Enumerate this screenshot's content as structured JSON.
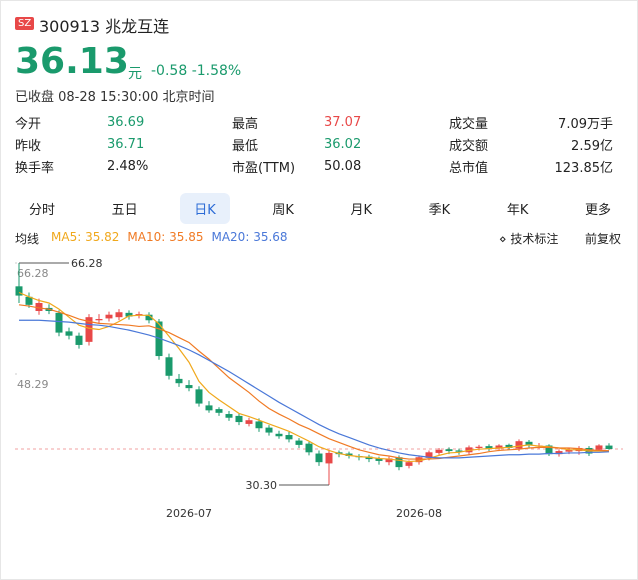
{
  "header": {
    "exchange": "SZ",
    "code": "300913",
    "name": "兆龙互连",
    "price": "36.13",
    "currency": "元",
    "change": "-0.58",
    "change_pct": "-1.58%",
    "status": "已收盘 08-28 15:30:00 北京时间"
  },
  "stats": [
    [
      {
        "label": "今开",
        "value": "36.69"
      },
      {
        "label": "最高",
        "value": "37.07"
      },
      {
        "label": "成交量",
        "value": "7.09万手"
      }
    ],
    [
      {
        "label": "昨收",
        "value": "36.71"
      },
      {
        "label": "最低",
        "value": "36.02"
      },
      {
        "label": "成交额",
        "value": "2.59亿"
      }
    ],
    [
      {
        "label": "换手率",
        "value": "2.48%"
      },
      {
        "label": "市盈(TTM)",
        "value": "50.08"
      },
      {
        "label": "总市值",
        "value": "123.85亿"
      }
    ]
  ],
  "tabs": [
    "分时",
    "五日",
    "日K",
    "周K",
    "月K",
    "季K",
    "年K",
    "更多"
  ],
  "indicator_label": "均线",
  "tools": [
    "技术标注",
    "前复权"
  ],
  "chart_data": {
    "type": "candlestick",
    "categories": [
      null,
      null,
      null,
      null,
      null,
      null,
      null,
      null,
      null,
      null,
      null,
      null,
      null,
      null,
      null,
      null,
      null,
      "2026-07",
      null,
      null,
      null,
      null,
      null,
      null,
      null,
      null,
      null,
      null,
      null,
      null,
      null,
      null,
      null,
      null,
      null,
      null,
      null,
      null,
      null,
      null,
      "2026-08",
      null,
      null,
      null,
      null,
      null,
      null,
      null,
      null,
      null,
      null,
      null,
      null,
      null,
      null,
      null,
      null,
      null,
      null,
      null
    ],
    "open": [
      62.5,
      60.8,
      58.5,
      59.0,
      58.2,
      55.2,
      54.5,
      53.5,
      57.0,
      57.3,
      57.5,
      58.2,
      57.8,
      57.9,
      56.8,
      51.0,
      47.5,
      46.5,
      45.8,
      43.2,
      42.6,
      41.8,
      41.5,
      40.2,
      40.6,
      39.6,
      38.6,
      38.4,
      37.5,
      37.0,
      35.4,
      33.8,
      35.6,
      35.4,
      35.0,
      34.9,
      34.6,
      34.0,
      34.8,
      33.4,
      34.0,
      34.7,
      35.5,
      36.1,
      35.9,
      35.6,
      36.3,
      36.6,
      36.2,
      36.8,
      36.2,
      37.3,
      36.6,
      36.7,
      35.3,
      35.7,
      35.8,
      36.3,
      36.0,
      36.69
    ],
    "high": [
      66.28,
      61.5,
      60.5,
      59.6,
      58.6,
      55.8,
      55.0,
      58.0,
      58.0,
      58.4,
      58.8,
      58.6,
      58.4,
      58.3,
      57.2,
      51.6,
      48.3,
      47.3,
      46.3,
      43.9,
      42.9,
      42.3,
      41.9,
      41.2,
      41.1,
      40.0,
      39.1,
      38.9,
      37.9,
      37.3,
      35.9,
      35.9,
      35.9,
      35.7,
      35.3,
      35.2,
      34.9,
      34.9,
      35.1,
      34.3,
      35.1,
      35.9,
      36.3,
      36.4,
      36.2,
      36.7,
      36.8,
      36.9,
      36.9,
      37.0,
      37.7,
      37.6,
      37.1,
      36.9,
      36.1,
      36.3,
      36.6,
      36.6,
      36.9,
      37.07
    ],
    "low": [
      59.8,
      59.0,
      57.9,
      58.0,
      54.4,
      53.9,
      52.4,
      52.9,
      56.4,
      56.8,
      57.0,
      57.1,
      57.3,
      56.5,
      50.6,
      47.4,
      46.2,
      45.5,
      43.0,
      42.0,
      41.5,
      40.7,
      40.0,
      39.8,
      38.9,
      38.3,
      37.8,
      37.2,
      36.3,
      35.1,
      33.4,
      30.3,
      34.8,
      34.6,
      34.3,
      34.0,
      33.6,
      33.5,
      32.7,
      33.0,
      33.6,
      34.3,
      35.2,
      35.3,
      35.2,
      35.2,
      35.9,
      35.8,
      35.8,
      36.0,
      35.8,
      36.2,
      36.2,
      35.0,
      34.9,
      35.3,
      35.2,
      35.0,
      35.8,
      36.02
    ],
    "close": [
      61.0,
      59.5,
      59.8,
      58.5,
      55.0,
      54.5,
      53.0,
      57.5,
      57.2,
      57.9,
      58.3,
      57.6,
      58.0,
      57.0,
      51.2,
      48.0,
      46.8,
      46.0,
      43.5,
      42.4,
      42.0,
      41.2,
      40.5,
      40.8,
      39.5,
      38.8,
      38.2,
      37.7,
      36.8,
      35.6,
      34.0,
      35.5,
      35.3,
      35.0,
      34.8,
      34.5,
      34.2,
      34.6,
      33.2,
      34.0,
      34.8,
      35.6,
      36.0,
      35.8,
      35.7,
      36.4,
      36.5,
      36.2,
      36.7,
      36.3,
      37.4,
      36.8,
      36.7,
      35.3,
      35.8,
      36.0,
      36.3,
      35.4,
      36.71,
      36.13
    ],
    "up_color": "#e84848",
    "down_color": "#1a9a6c",
    "series": [
      {
        "name": "MA5",
        "color": "#f0a81c",
        "values": [
          61.5,
          60.8,
          60.2,
          59.8,
          58.8,
          57.5,
          56.2,
          55.7,
          55.5,
          56.0,
          56.8,
          57.7,
          57.8,
          57.8,
          56.4,
          54.4,
          52.4,
          50.2,
          47.1,
          45.3,
          44.1,
          43.0,
          41.9,
          41.4,
          40.8,
          40.2,
          39.6,
          39.0,
          38.2,
          37.4,
          36.5,
          35.9,
          35.4,
          35.1,
          34.9,
          34.8,
          34.6,
          34.5,
          34.3,
          34.1,
          34.2,
          34.6,
          35.1,
          35.5,
          35.6,
          35.9,
          36.1,
          36.2,
          36.3,
          36.4,
          36.6,
          36.8,
          36.6,
          36.5,
          36.3,
          36.0,
          36.0,
          35.8,
          35.8,
          35.82
        ]
      },
      {
        "name": "MA10",
        "color": "#f07a24",
        "values": [
          59.5,
          59.3,
          59.0,
          58.8,
          58.3,
          57.8,
          57.2,
          56.8,
          56.5,
          56.4,
          56.3,
          56.2,
          56.0,
          56.1,
          55.6,
          55.0,
          54.2,
          53.4,
          52.0,
          50.7,
          49.2,
          47.7,
          46.5,
          45.3,
          43.9,
          42.7,
          41.8,
          41.0,
          40.1,
          39.4,
          38.6,
          37.8,
          37.2,
          36.6,
          36.0,
          35.6,
          35.2,
          35.0,
          34.7,
          34.5,
          34.5,
          34.5,
          34.6,
          34.8,
          35.0,
          35.2,
          35.4,
          35.7,
          35.9,
          36.0,
          36.1,
          36.3,
          36.4,
          36.4,
          36.3,
          36.3,
          36.2,
          36.0,
          35.9,
          35.85
        ]
      },
      {
        "name": "MA20",
        "color": "#4a78d8",
        "values": [
          57.0,
          57.0,
          57.0,
          56.9,
          56.8,
          56.7,
          56.5,
          56.3,
          56.2,
          56.0,
          55.7,
          55.4,
          55.0,
          54.6,
          54.1,
          53.5,
          52.9,
          52.2,
          51.4,
          50.5,
          49.6,
          48.7,
          47.7,
          46.7,
          45.7,
          44.7,
          43.7,
          42.8,
          41.9,
          41.0,
          40.1,
          39.3,
          38.6,
          38.0,
          37.4,
          36.8,
          36.3,
          35.9,
          35.5,
          35.2,
          35.0,
          34.8,
          34.7,
          34.7,
          34.7,
          34.8,
          34.9,
          35.0,
          35.1,
          35.2,
          35.2,
          35.3,
          35.3,
          35.4,
          35.4,
          35.5,
          35.5,
          35.6,
          35.6,
          35.68
        ]
      }
    ],
    "ylim": [
      30.3,
      66.28
    ],
    "yticks": [
      66.28,
      48.29
    ],
    "annotations": [
      {
        "value": 66.28,
        "label": "66.28"
      },
      {
        "value": 30.3,
        "label": "30.30"
      }
    ],
    "reference_price": 36.13
  }
}
